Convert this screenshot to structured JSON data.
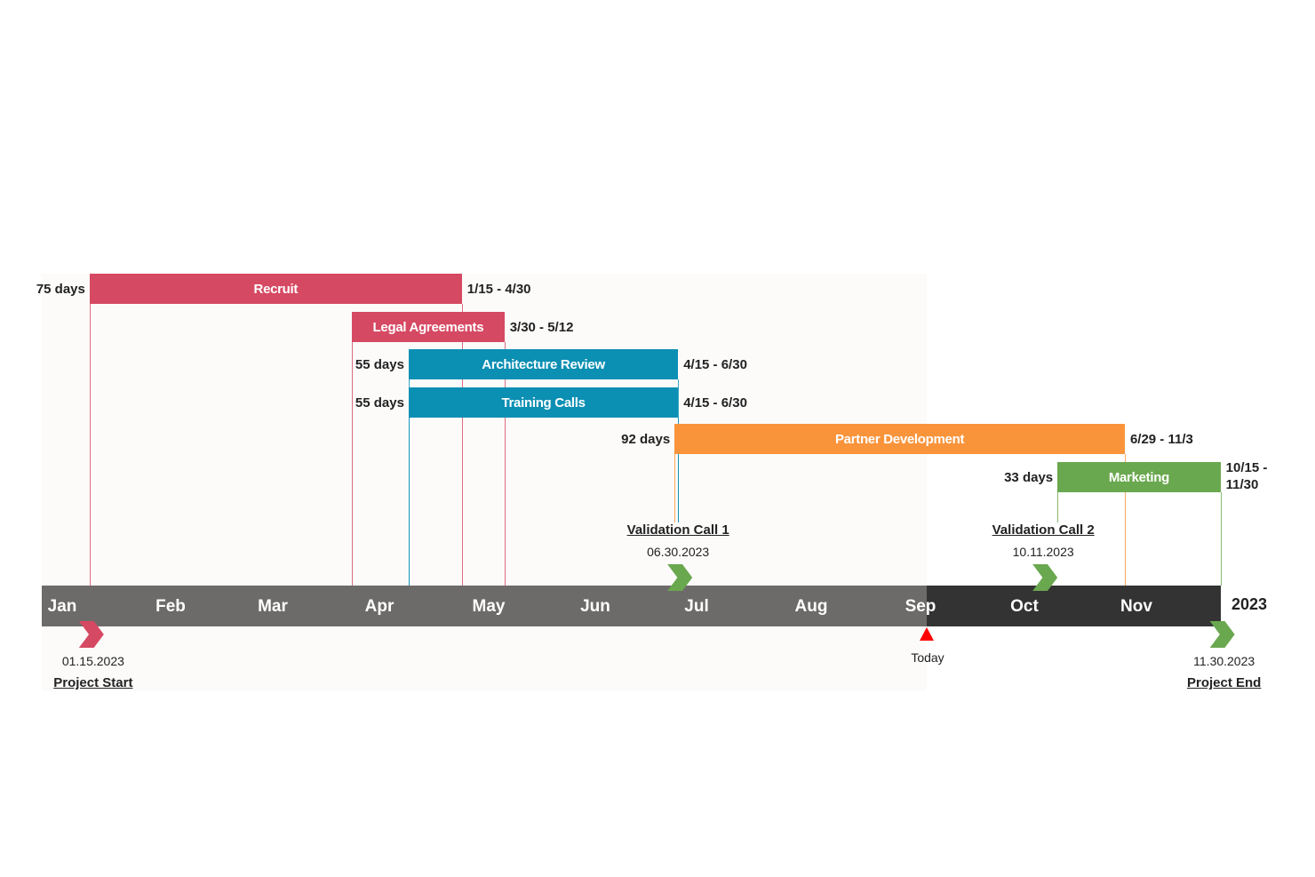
{
  "chart_data": {
    "type": "gantt",
    "year": "2023",
    "months": [
      "Jan",
      "Feb",
      "Mar",
      "Apr",
      "May",
      "Jun",
      "Jul",
      "Aug",
      "Sep",
      "Oct",
      "Nov"
    ],
    "tasks": [
      {
        "name": "Recruit",
        "start": "2023-01-15",
        "end": "2023-04-30",
        "duration_label": "75 days",
        "range_label": "1/15 - 4/30",
        "color": "#d64963"
      },
      {
        "name": "Legal Agreements",
        "start": "2023-03-30",
        "end": "2023-05-12",
        "duration_label": "",
        "range_label": "3/30 - 5/12",
        "color": "#d64963"
      },
      {
        "name": "Architecture Review",
        "start": "2023-04-15",
        "end": "2023-06-30",
        "duration_label": "55 days",
        "range_label": "4/15 - 6/30",
        "color": "#0b8fb3"
      },
      {
        "name": "Training Calls",
        "start": "2023-04-15",
        "end": "2023-06-30",
        "duration_label": "55 days",
        "range_label": "4/15 - 6/30",
        "color": "#0b8fb3"
      },
      {
        "name": "Partner Development",
        "start": "2023-06-29",
        "end": "2023-11-03",
        "duration_label": "92 days",
        "range_label": "6/29 - 11/3",
        "color": "#f9943b"
      },
      {
        "name": "Marketing",
        "start": "2023-10-15",
        "end": "2023-11-30",
        "duration_label": "33 days",
        "range_label": "10/15 - 11/30",
        "color": "#6aa84f"
      }
    ],
    "milestones": [
      {
        "name": "Validation Call 1",
        "date": "2023-06-30",
        "date_label": "06.30.2023",
        "position": "above",
        "color": "#6aa84f"
      },
      {
        "name": "Validation Call 2",
        "date": "2023-10-11",
        "date_label": "10.11.2023",
        "position": "above",
        "color": "#6aa84f"
      },
      {
        "name": "Project Start",
        "date": "2023-01-15",
        "date_label": "01.15.2023",
        "position": "below",
        "color": "#d64963"
      },
      {
        "name": "Project End",
        "date": "2023-11-30",
        "date_label": "11.30.2023",
        "position": "below",
        "color": "#6aa84f"
      }
    ],
    "today_label": "Today",
    "colors": {
      "axis_past": "#6d6b69",
      "axis_future": "#333333",
      "today_marker": "#ff0000"
    }
  }
}
